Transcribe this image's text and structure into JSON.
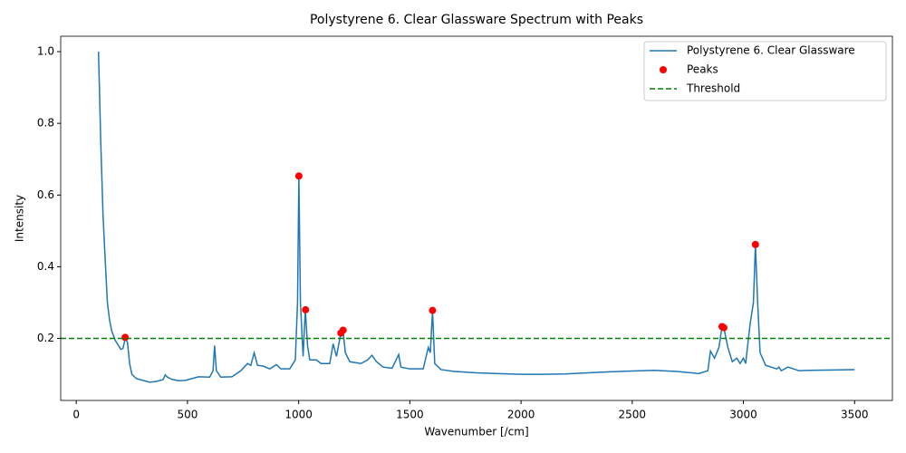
{
  "chart_data": {
    "type": "line",
    "title": "Polystyrene 6. Clear Glassware Spectrum with Peaks",
    "xlabel": "Wavenumber [/cm]",
    "ylabel": "Intensity",
    "xlim": [
      -70,
      3670
    ],
    "ylim": [
      0.027,
      1.043
    ],
    "xticks": [
      0,
      500,
      1000,
      1500,
      2000,
      2500,
      3000,
      3500
    ],
    "yticks": [
      0.2,
      0.4,
      0.6,
      0.8,
      {
        "value": 1,
        "label": "1.0"
      }
    ],
    "legend": "upper right",
    "series": [
      {
        "name": "Polystyrene 6. Clear Glassware",
        "type": "line",
        "color": "#1f77b4",
        "x": [
          100,
          110,
          120,
          130,
          140,
          150,
          160,
          175,
          190,
          200,
          210,
          220,
          230,
          240,
          250,
          270,
          300,
          330,
          360,
          390,
          400,
          410,
          430,
          460,
          490,
          520,
          550,
          600,
          615,
          622,
          630,
          650,
          700,
          740,
          770,
          785,
          800,
          815,
          840,
          870,
          900,
          920,
          960,
          985,
          995,
          1001,
          1008,
          1020,
          1030,
          1040,
          1050,
          1080,
          1100,
          1140,
          1155,
          1170,
          1190,
          1200,
          1210,
          1230,
          1280,
          1310,
          1330,
          1350,
          1380,
          1420,
          1450,
          1460,
          1500,
          1560,
          1583,
          1592,
          1602,
          1612,
          1640,
          1700,
          1800,
          1900,
          2000,
          2100,
          2200,
          2300,
          2400,
          2500,
          2600,
          2700,
          2800,
          2840,
          2852,
          2870,
          2890,
          2904,
          2912,
          2930,
          2950,
          2970,
          2985,
          3000,
          3010,
          3030,
          3045,
          3054,
          3064,
          3075,
          3100,
          3150,
          3160,
          3170,
          3200,
          3250,
          3300,
          3400,
          3500
        ],
        "values": [
          1.0,
          0.75,
          0.55,
          0.42,
          0.3,
          0.25,
          0.22,
          0.195,
          0.18,
          0.17,
          0.172,
          0.2,
          0.19,
          0.13,
          0.1,
          0.088,
          0.083,
          0.078,
          0.08,
          0.085,
          0.098,
          0.092,
          0.086,
          0.082,
          0.083,
          0.088,
          0.093,
          0.092,
          0.11,
          0.18,
          0.11,
          0.092,
          0.093,
          0.11,
          0.13,
          0.125,
          0.16,
          0.125,
          0.123,
          0.115,
          0.127,
          0.115,
          0.115,
          0.14,
          0.3,
          0.653,
          0.3,
          0.15,
          0.28,
          0.18,
          0.14,
          0.14,
          0.13,
          0.13,
          0.185,
          0.15,
          0.215,
          0.22,
          0.16,
          0.135,
          0.13,
          0.14,
          0.153,
          0.135,
          0.12,
          0.117,
          0.155,
          0.12,
          0.115,
          0.115,
          0.175,
          0.16,
          0.277,
          0.13,
          0.113,
          0.108,
          0.104,
          0.102,
          0.1,
          0.1,
          0.101,
          0.104,
          0.107,
          0.109,
          0.111,
          0.108,
          0.102,
          0.11,
          0.165,
          0.145,
          0.175,
          0.233,
          0.23,
          0.175,
          0.135,
          0.145,
          0.13,
          0.145,
          0.13,
          0.24,
          0.3,
          0.462,
          0.3,
          0.16,
          0.125,
          0.115,
          0.12,
          0.11,
          0.12,
          0.11,
          0.111,
          0.112,
          0.113
        ]
      },
      {
        "name": "Peaks",
        "type": "scatter",
        "color": "red",
        "x": [
          220,
          1001,
          1031,
          1190,
          1200,
          1602,
          2904,
          2912,
          3054
        ],
        "values": [
          0.203,
          0.653,
          0.28,
          0.215,
          0.223,
          0.278,
          0.233,
          0.23,
          0.462
        ]
      },
      {
        "name": "Threshold",
        "type": "hline",
        "color": "green",
        "linestyle": "dashed",
        "values": [
          0.2
        ]
      }
    ]
  }
}
